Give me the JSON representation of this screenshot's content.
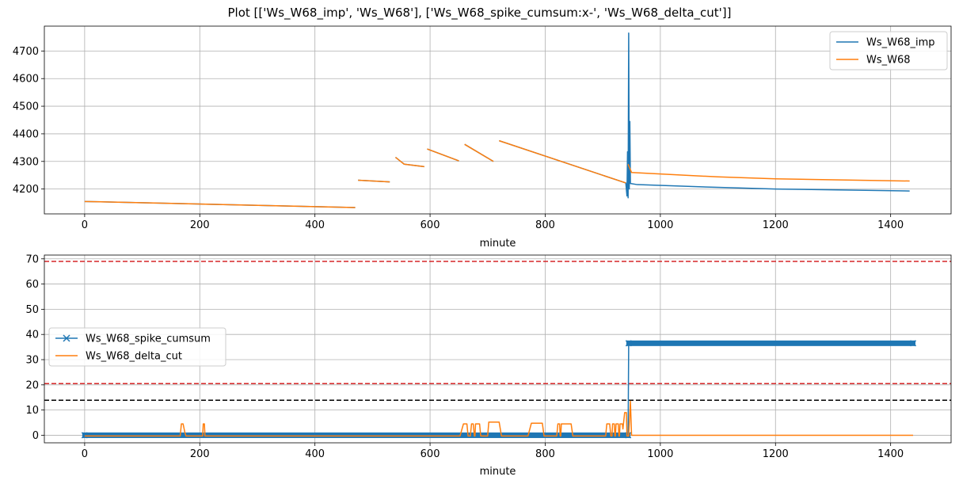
{
  "figure": {
    "title": "Plot [['Ws_W68_imp', 'Ws_W68'], ['Ws_W68_spike_cumsum:x-', 'Ws_W68_delta_cut']]"
  },
  "chart_data": [
    {
      "type": "line",
      "xlabel": "minute",
      "ylabel": "",
      "xlim": [
        -70,
        1505
      ],
      "ylim": [
        4110,
        4790
      ],
      "x_ticks": [
        0,
        200,
        400,
        600,
        800,
        1000,
        1200,
        1400
      ],
      "y_ticks": [
        4200,
        4300,
        4400,
        4500,
        4600,
        4700
      ],
      "grid": true,
      "legend_position": "top-right",
      "colors": {
        "Ws_W68_imp": "#1f77b4",
        "Ws_W68": "#ff7f0e"
      },
      "series": [
        {
          "name": "Ws_W68_imp",
          "color": "#1f77b4",
          "segments": [
            [
              [
                0,
                4155
              ],
              [
                470,
                4133
              ]
            ],
            [
              [
                475,
                4232
              ],
              [
                530,
                4226
              ]
            ],
            [
              [
                540,
                4315
              ],
              [
                555,
                4290
              ],
              [
                590,
                4281
              ]
            ],
            [
              [
                595,
                4345
              ],
              [
                650,
                4302
              ]
            ],
            [
              [
                660,
                4362
              ],
              [
                710,
                4300
              ]
            ],
            [
              [
                720,
                4375
              ],
              [
                940,
                4222
              ],
              [
                942,
                4175
              ],
              [
                943,
                4335
              ],
              [
                944,
                4168
              ],
              [
                945,
                4765
              ],
              [
                946,
                4200
              ],
              [
                947,
                4445
              ],
              [
                948,
                4220
              ],
              [
                960,
                4216
              ],
              [
                1100,
                4206
              ],
              [
                1200,
                4200
              ],
              [
                1433,
                4193
              ]
            ]
          ]
        },
        {
          "name": "Ws_W68",
          "color": "#ff7f0e",
          "segments": [
            [
              [
                0,
                4155
              ],
              [
                470,
                4133
              ]
            ],
            [
              [
                475,
                4232
              ],
              [
                530,
                4226
              ]
            ],
            [
              [
                540,
                4315
              ],
              [
                555,
                4290
              ],
              [
                590,
                4281
              ]
            ],
            [
              [
                595,
                4345
              ],
              [
                650,
                4302
              ]
            ],
            [
              [
                660,
                4362
              ],
              [
                710,
                4300
              ]
            ],
            [
              [
                720,
                4375
              ],
              [
                940,
                4222
              ]
            ],
            [
              [
                944,
                4290
              ],
              [
                950,
                4260
              ],
              [
                1100,
                4244
              ],
              [
                1200,
                4237
              ],
              [
                1433,
                4229
              ]
            ]
          ]
        }
      ]
    },
    {
      "type": "line",
      "xlabel": "minute",
      "ylabel": "",
      "xlim": [
        -70,
        1505
      ],
      "ylim": [
        -3,
        71.5
      ],
      "x_ticks": [
        0,
        200,
        400,
        600,
        800,
        1000,
        1200,
        1400
      ],
      "y_ticks": [
        0,
        10,
        20,
        30,
        40,
        50,
        60,
        70
      ],
      "grid": true,
      "legend_position": "center-left",
      "colors": {
        "Ws_W68_spike_cumsum": "#1f77b4",
        "Ws_W68_delta_cut": "#ff7f0e"
      },
      "threshold_lines": [
        {
          "y": 69,
          "color": "#d62728",
          "style": "dashed"
        },
        {
          "y": 20.5,
          "color": "#d62728",
          "style": "dashed"
        },
        {
          "y": 13.9,
          "color": "#000000",
          "style": "dashed"
        }
      ],
      "series": [
        {
          "name": "Ws_W68_spike_cumsum",
          "color": "#1f77b4",
          "marker": "x",
          "x_range": [
            0,
            1439
          ],
          "points": [
            [
              0,
              0
            ],
            [
              944,
              0
            ],
            [
              945,
              36.5
            ],
            [
              1439,
              36.5
            ]
          ]
        },
        {
          "name": "Ws_W68_delta_cut",
          "color": "#ff7f0e",
          "points": [
            [
              0,
              -0.3
            ],
            [
              166,
              -0.3
            ],
            [
              168,
              4.5
            ],
            [
              171,
              4.5
            ],
            [
              174,
              1.2
            ],
            [
              176,
              -0.3
            ],
            [
              205,
              -0.3
            ],
            [
              206,
              4.5
            ],
            [
              208,
              4.5
            ],
            [
              209,
              -0.3
            ],
            [
              652,
              -0.3
            ],
            [
              658,
              4.5
            ],
            [
              664,
              4.5
            ],
            [
              666,
              -0.3
            ],
            [
              670,
              -0.3
            ],
            [
              672,
              4.5
            ],
            [
              675,
              4.5
            ],
            [
              677,
              -0.3
            ],
            [
              678,
              -0.3
            ],
            [
              679,
              4.5
            ],
            [
              686,
              4.5
            ],
            [
              688,
              -0.3
            ],
            [
              700,
              -0.3
            ],
            [
              702,
              5.2
            ],
            [
              720,
              5.2
            ],
            [
              724,
              -0.3
            ],
            [
              770,
              -0.3
            ],
            [
              776,
              4.8
            ],
            [
              795,
              4.8
            ],
            [
              798,
              -0.3
            ],
            [
              820,
              -0.3
            ],
            [
              822,
              4.5
            ],
            [
              825,
              4.5
            ],
            [
              826,
              -0.3
            ],
            [
              827,
              -0.3
            ],
            [
              828,
              4.5
            ],
            [
              845,
              4.5
            ],
            [
              848,
              -0.3
            ],
            [
              905,
              -0.3
            ],
            [
              907,
              4.5
            ],
            [
              912,
              4.5
            ],
            [
              914,
              -0.3
            ],
            [
              916,
              -0.3
            ],
            [
              917,
              4.5
            ],
            [
              920,
              4.5
            ],
            [
              921,
              -0.3
            ],
            [
              922,
              -0.3
            ],
            [
              923,
              4.5
            ],
            [
              927,
              4.5
            ],
            [
              928,
              -0.3
            ],
            [
              929,
              -0.3
            ],
            [
              930,
              4.5
            ],
            [
              934,
              4.5
            ],
            [
              935,
              2.5
            ],
            [
              938,
              9
            ],
            [
              941,
              9
            ],
            [
              942,
              -0.3
            ],
            [
              945,
              -0.3
            ],
            [
              948,
              13.5
            ],
            [
              950,
              0
            ],
            [
              1439,
              0
            ]
          ]
        }
      ]
    }
  ]
}
